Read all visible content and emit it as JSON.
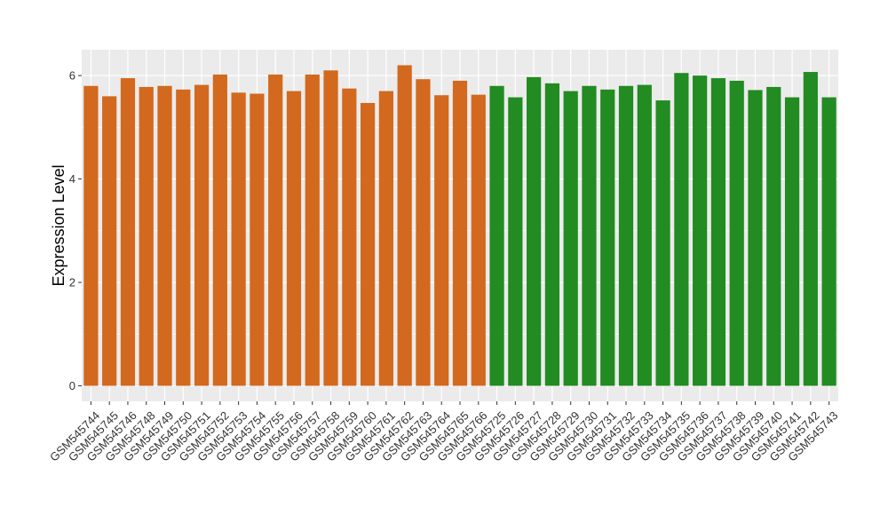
{
  "chart_data": {
    "type": "bar",
    "ylabel": "Expression Level",
    "xlabel": "",
    "ylim": [
      -0.3,
      6.5
    ],
    "yticks": [
      0,
      2,
      4,
      6
    ],
    "grid": true,
    "background": "#EBEBEB",
    "gridline_color": "#FFFFFF",
    "group_colors": [
      "#D2691E",
      "#228B22"
    ],
    "categories": [
      "GSM545744",
      "GSM545745",
      "GSM545746",
      "GSM545748",
      "GSM545749",
      "GSM545750",
      "GSM545751",
      "GSM545752",
      "GSM545753",
      "GSM545754",
      "GSM545755",
      "GSM545756",
      "GSM545757",
      "GSM545758",
      "GSM545759",
      "GSM545760",
      "GSM545761",
      "GSM545762",
      "GSM545763",
      "GSM545764",
      "GSM545765",
      "GSM545766",
      "GSM545725",
      "GSM545726",
      "GSM545727",
      "GSM545728",
      "GSM545729",
      "GSM545730",
      "GSM545731",
      "GSM545732",
      "GSM545733",
      "GSM545734",
      "GSM545735",
      "GSM545736",
      "GSM545737",
      "GSM545738",
      "GSM545739",
      "GSM545740",
      "GSM545741",
      "GSM545742",
      "GSM545743"
    ],
    "values": [
      5.8,
      5.6,
      5.95,
      5.78,
      5.8,
      5.73,
      5.82,
      6.02,
      5.67,
      5.65,
      6.02,
      5.7,
      6.02,
      6.1,
      5.75,
      5.47,
      5.7,
      6.2,
      5.93,
      5.62,
      5.9,
      5.63,
      5.8,
      5.58,
      5.97,
      5.85,
      5.7,
      5.8,
      5.73,
      5.8,
      5.82,
      5.52,
      6.05,
      6.0,
      5.95,
      5.9,
      5.72,
      5.78,
      5.58,
      6.07,
      5.58
    ],
    "groups": [
      0,
      0,
      0,
      0,
      0,
      0,
      0,
      0,
      0,
      0,
      0,
      0,
      0,
      0,
      0,
      0,
      0,
      0,
      0,
      0,
      0,
      0,
      1,
      1,
      1,
      1,
      1,
      1,
      1,
      1,
      1,
      1,
      1,
      1,
      1,
      1,
      1,
      1,
      1,
      1,
      1
    ]
  }
}
